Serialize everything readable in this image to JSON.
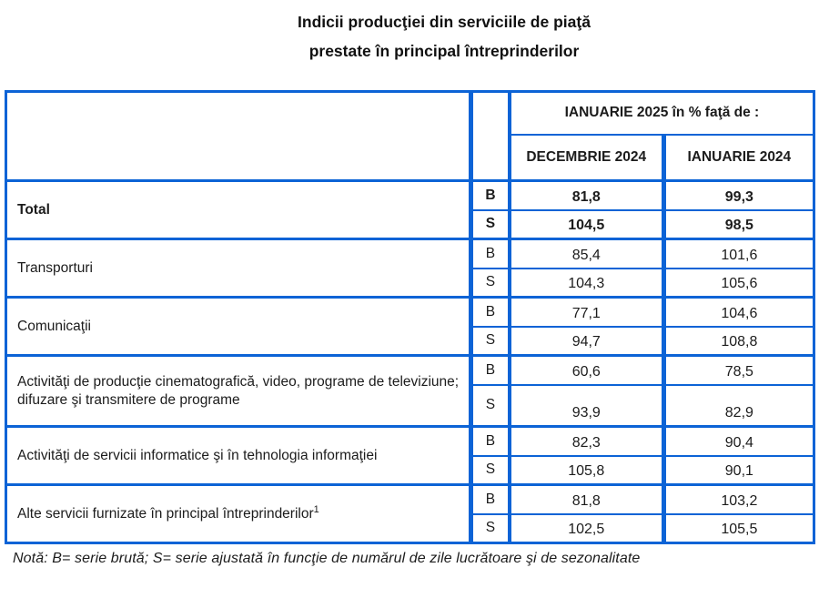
{
  "title": {
    "line1": "Indicii producţiei din serviciile de piaţă",
    "line2": "prestate în principal întreprinderilor"
  },
  "table": {
    "header": {
      "span_label": "IANUARIE 2025 în % faţă de :",
      "col_dec": "DECEMBRIE 2024",
      "col_ian": "IANUARIE 2024"
    },
    "series_labels": {
      "b": "B",
      "s": "S"
    },
    "rows": [
      {
        "label": "Total",
        "bold": true,
        "tall_s": false,
        "sup": "",
        "b": [
          "81,8",
          "99,3"
        ],
        "s": [
          "104,5",
          "98,5"
        ]
      },
      {
        "label": "Transporturi",
        "bold": false,
        "tall_s": false,
        "sup": "",
        "b": [
          "85,4",
          "101,6"
        ],
        "s": [
          "104,3",
          "105,6"
        ]
      },
      {
        "label": "Comunicaţii",
        "bold": false,
        "tall_s": false,
        "sup": "",
        "b": [
          "77,1",
          "104,6"
        ],
        "s": [
          "94,7",
          "108,8"
        ]
      },
      {
        "label": "Activităţi de producţie cinematografică, video, programe de televiziune; difuzare şi transmitere de programe",
        "bold": false,
        "tall_s": true,
        "sup": "",
        "b": [
          "60,6",
          "78,5"
        ],
        "s": [
          "93,9",
          "82,9"
        ]
      },
      {
        "label": "Activităţi de servicii informatice şi  în tehnologia informaţiei",
        "bold": false,
        "tall_s": false,
        "sup": "",
        "b": [
          "82,3",
          "90,4"
        ],
        "s": [
          "105,8",
          "90,1"
        ]
      },
      {
        "label": "Alte servicii furnizate în principal întreprinderilor",
        "bold": false,
        "tall_s": false,
        "sup": "1",
        "b": [
          "81,8",
          "103,2"
        ],
        "s": [
          "102,5",
          "105,5"
        ]
      }
    ]
  },
  "note": "Notă: B= serie brută; S= serie ajustată în funcţie de numărul de zile lucrătoare şi de sezonalitate",
  "colors": {
    "border_blue": "#0c63d6",
    "text": "#1c1c1c"
  }
}
